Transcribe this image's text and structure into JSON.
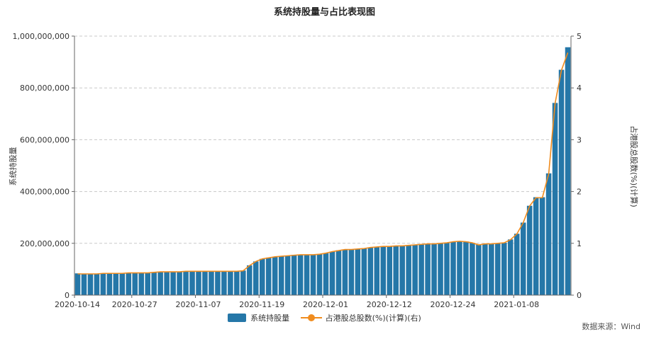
{
  "chart_data": {
    "type": "bar",
    "title": "系统持股量与占比表现图",
    "ylabel": "系统持股量",
    "y2label": "占港股总股数(%)(计算)",
    "ylim": [
      0,
      1000000000
    ],
    "y2lim": [
      0,
      5
    ],
    "yticks": [
      "0",
      "200,000,000",
      "400,000,000",
      "600,000,000",
      "800,000,000",
      "1,000,000,000"
    ],
    "y2ticks": [
      "0",
      "1",
      "2",
      "3",
      "4",
      "5"
    ],
    "xtick_labels": [
      "2020-10-14",
      "2020-10-27",
      "2020-11-07",
      "2020-11-19",
      "2020-12-01",
      "2020-12-12",
      "2020-12-24",
      "2021-01-08"
    ],
    "xtick_indices": [
      0,
      9,
      19,
      29,
      39,
      49,
      59,
      69
    ],
    "grid": "horizontal dashed",
    "legend_position": "bottom",
    "series": [
      {
        "name": "系统持股量",
        "type": "bar",
        "axis": "left",
        "color": "#2577a8",
        "values": [
          84000000,
          83000000,
          83000000,
          83000000,
          84000000,
          84000000,
          84000000,
          85000000,
          86000000,
          87000000,
          87000000,
          87000000,
          89000000,
          90000000,
          90000000,
          90000000,
          91000000,
          92000000,
          92000000,
          92000000,
          92000000,
          92000000,
          93000000,
          92000000,
          92000000,
          93000000,
          95000000,
          115000000,
          130000000,
          140000000,
          145000000,
          148000000,
          150000000,
          153000000,
          155000000,
          156000000,
          156000000,
          157000000,
          158000000,
          162000000,
          168000000,
          173000000,
          176000000,
          177000000,
          178000000,
          181000000,
          184000000,
          186000000,
          188000000,
          189000000,
          190000000,
          191000000,
          193000000,
          195000000,
          197000000,
          198000000,
          199000000,
          201000000,
          203000000,
          206000000,
          208000000,
          207000000,
          202000000,
          195000000,
          198000000,
          199000000,
          200000000,
          202000000,
          215000000,
          237000000,
          280000000,
          345000000,
          378000000,
          378000000,
          470000000,
          742000000,
          870000000,
          957000000
        ]
      },
      {
        "name": "占港股总股数(%)(计算)(右)",
        "type": "line",
        "axis": "right",
        "color": "#f08c1e",
        "values": [
          0.41,
          0.41,
          0.41,
          0.41,
          0.42,
          0.42,
          0.42,
          0.42,
          0.43,
          0.43,
          0.43,
          0.43,
          0.44,
          0.45,
          0.45,
          0.45,
          0.45,
          0.46,
          0.46,
          0.46,
          0.46,
          0.46,
          0.46,
          0.46,
          0.46,
          0.46,
          0.47,
          0.57,
          0.65,
          0.7,
          0.72,
          0.74,
          0.75,
          0.76,
          0.77,
          0.78,
          0.78,
          0.78,
          0.79,
          0.81,
          0.84,
          0.86,
          0.88,
          0.88,
          0.89,
          0.9,
          0.92,
          0.93,
          0.94,
          0.94,
          0.95,
          0.95,
          0.96,
          0.97,
          0.98,
          0.99,
          0.99,
          1.0,
          1.01,
          1.03,
          1.04,
          1.03,
          1.01,
          0.97,
          0.99,
          0.99,
          1.0,
          1.01,
          1.07,
          1.18,
          1.4,
          1.72,
          1.88,
          1.88,
          2.34,
          3.7,
          4.34,
          4.68
        ]
      }
    ]
  },
  "legend": {
    "bar_label": "系统持股量",
    "line_label": "占港股总股数(%)(计算)(右)"
  },
  "source": "数据来源：Wind"
}
